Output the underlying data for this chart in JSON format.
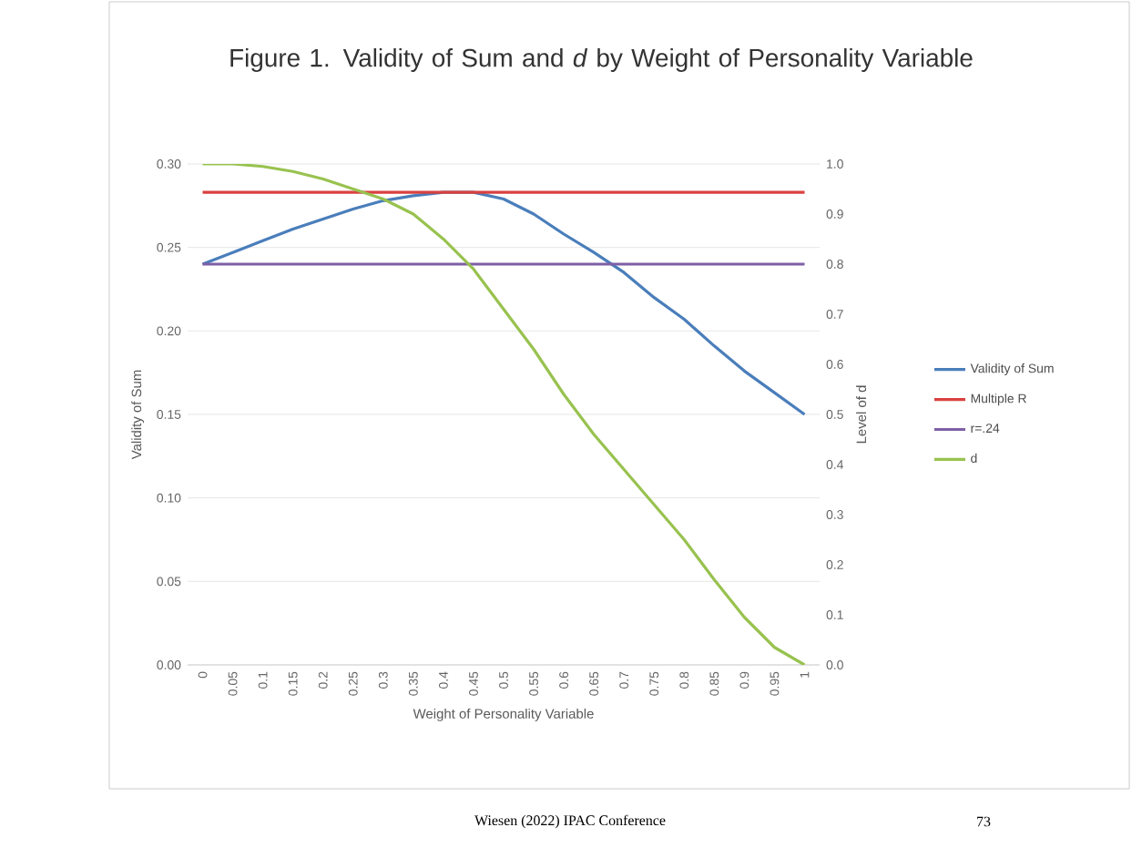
{
  "chart_data": {
    "type": "line",
    "title": "Figure 1.  Validity of Sum and *d* by Weight of Personality Variable",
    "xlabel": "Weight of Personality Variable",
    "ylabel": "Validity of Sum",
    "y2label": "Level of d",
    "categories": [
      "0",
      "0.05",
      "0.1",
      "0.15",
      "0.2",
      "0.25",
      "0.3",
      "0.35",
      "0.4",
      "0.45",
      "0.5",
      "0.55",
      "0.6",
      "0.65",
      "0.7",
      "0.75",
      "0.8",
      "0.85",
      "0.9",
      "0.95",
      "1"
    ],
    "series": [
      {
        "name": "Validity of Sum",
        "color": "#4a7ebb",
        "values": [
          0.24,
          0.247,
          0.254,
          0.261,
          0.267,
          0.273,
          0.278,
          0.281,
          0.283,
          0.283,
          0.279,
          0.27,
          0.258,
          0.247,
          0.235,
          0.22,
          0.207,
          0.191,
          0.176,
          0.163,
          0.15
        ]
      },
      {
        "name": "Multiple R",
        "color": "#d9413f",
        "values": [
          0.283,
          0.283,
          0.283,
          0.283,
          0.283,
          0.283,
          0.283,
          0.283,
          0.283,
          0.283,
          0.283,
          0.283,
          0.283,
          0.283,
          0.283,
          0.283,
          0.283,
          0.283,
          0.283,
          0.283,
          0.283
        ]
      },
      {
        "name": "r=.24",
        "color": "#7e5fa6",
        "values": [
          0.24,
          0.24,
          0.24,
          0.24,
          0.24,
          0.24,
          0.24,
          0.24,
          0.24,
          0.24,
          0.24,
          0.24,
          0.24,
          0.24,
          0.24,
          0.24,
          0.24,
          0.24,
          0.24,
          0.24,
          0.24
        ]
      },
      {
        "name": "d",
        "color": "#98c24f",
        "axis": "y2",
        "values": [
          1.0,
          1.0,
          0.995,
          0.985,
          0.97,
          0.95,
          0.93,
          0.9,
          0.85,
          0.79,
          0.71,
          0.63,
          0.54,
          0.46,
          0.39,
          0.32,
          0.25,
          0.17,
          0.095,
          0.035,
          0.0
        ]
      }
    ],
    "ylim": [
      0,
      0.3
    ],
    "yticks": [
      {
        "value": 0,
        "label": "0.00"
      },
      {
        "value": 0.05,
        "label": "0.05"
      },
      {
        "value": 0.1,
        "label": "0.10"
      },
      {
        "value": 0.15,
        "label": "0.15"
      },
      {
        "value": 0.2,
        "label": "0.20"
      },
      {
        "value": 0.25,
        "label": "0.25"
      },
      {
        "value": 0.3,
        "label": "0.30"
      }
    ],
    "y2lim": [
      0,
      1
    ],
    "y2ticks": [
      {
        "value": 0,
        "label": "0.0"
      },
      {
        "value": 0.1,
        "label": "0.1"
      },
      {
        "value": 0.2,
        "label": "0.2"
      },
      {
        "value": 0.3,
        "label": "0.3"
      },
      {
        "value": 0.4,
        "label": "0.4"
      },
      {
        "value": 0.5,
        "label": "0.5"
      },
      {
        "value": 0.6,
        "label": "0.6"
      },
      {
        "value": 0.7,
        "label": "0.7"
      },
      {
        "value": 0.8,
        "label": "0.8"
      },
      {
        "value": 0.9,
        "label": "0.9"
      },
      {
        "value": 1,
        "label": "1.0"
      }
    ],
    "grid": "y",
    "legend": "right",
    "marker": "none",
    "annotations": [
      "Wiesen (2022) IPAC Conference",
      "73"
    ]
  }
}
